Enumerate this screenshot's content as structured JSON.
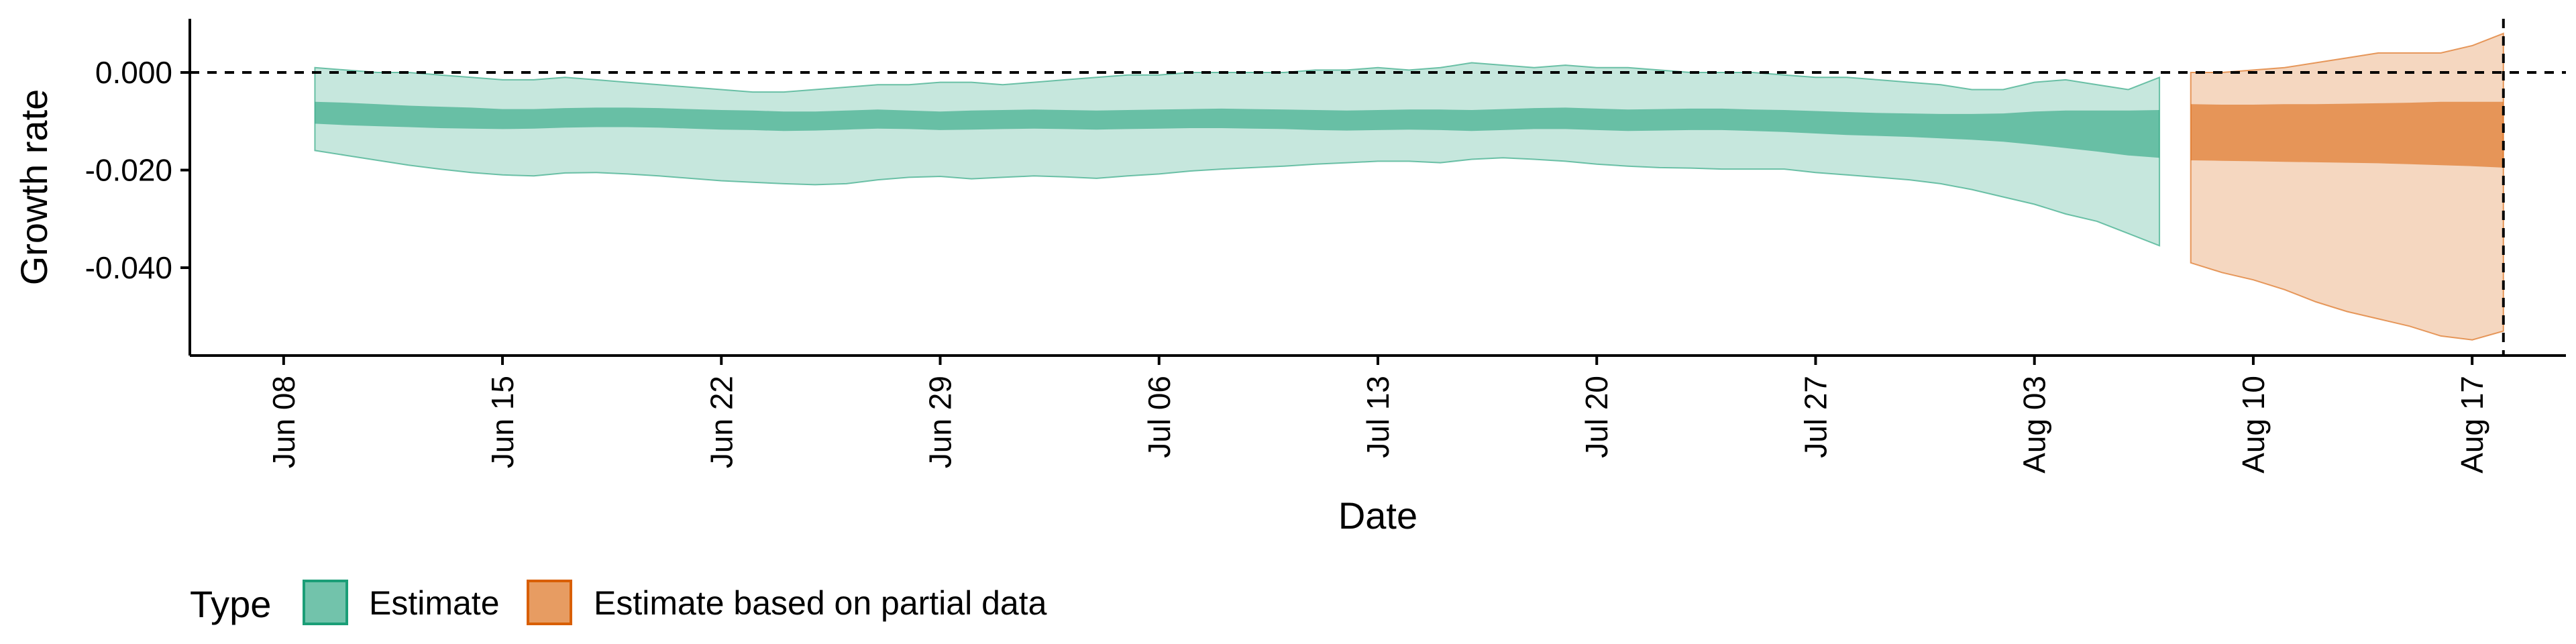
{
  "chart_data": {
    "type": "area",
    "xlabel": "Date",
    "ylabel": "Growth rate",
    "x_ticks": [
      "Jun 08",
      "Jun 15",
      "Jun 22",
      "Jun 29",
      "Jul 06",
      "Jul 13",
      "Jul 20",
      "Jul 27",
      "Aug 03",
      "Aug 10",
      "Aug 17"
    ],
    "y_ticks": [
      "0.000",
      "-0.020",
      "-0.040"
    ],
    "y_tick_values": [
      0.0,
      -0.02,
      -0.04
    ],
    "ylim": [
      -0.058,
      0.011
    ],
    "xlim": [
      "2020-06-05",
      "2020-08-20"
    ],
    "reference_lines": {
      "hline_y": 0.0,
      "vline_date": "2020-08-18"
    },
    "legend": {
      "title": "Type",
      "position": "bottom-left",
      "entries": [
        "Estimate",
        "Estimate based on partial data"
      ]
    },
    "series": [
      {
        "name": "Estimate",
        "fill_color": "#1b9e77",
        "x": [
          "2020-06-09",
          "2020-06-10",
          "2020-06-11",
          "2020-06-12",
          "2020-06-13",
          "2020-06-14",
          "2020-06-15",
          "2020-06-16",
          "2020-06-17",
          "2020-06-18",
          "2020-06-19",
          "2020-06-20",
          "2020-06-21",
          "2020-06-22",
          "2020-06-23",
          "2020-06-24",
          "2020-06-25",
          "2020-06-26",
          "2020-06-27",
          "2020-06-28",
          "2020-06-29",
          "2020-06-30",
          "2020-07-01",
          "2020-07-02",
          "2020-07-03",
          "2020-07-04",
          "2020-07-05",
          "2020-07-06",
          "2020-07-07",
          "2020-07-08",
          "2020-07-09",
          "2020-07-10",
          "2020-07-11",
          "2020-07-12",
          "2020-07-13",
          "2020-07-14",
          "2020-07-15",
          "2020-07-16",
          "2020-07-17",
          "2020-07-18",
          "2020-07-19",
          "2020-07-20",
          "2020-07-21",
          "2020-07-22",
          "2020-07-23",
          "2020-07-24",
          "2020-07-25",
          "2020-07-26",
          "2020-07-27",
          "2020-07-28",
          "2020-07-29",
          "2020-07-30",
          "2020-07-31",
          "2020-08-01",
          "2020-08-02",
          "2020-08-03",
          "2020-08-04",
          "2020-08-05",
          "2020-08-06",
          "2020-08-07"
        ],
        "outer_upper": [
          0.001,
          0.0005,
          0.0,
          0.0,
          -0.0005,
          -0.001,
          -0.0015,
          -0.0015,
          -0.001,
          -0.0015,
          -0.002,
          -0.0025,
          -0.003,
          -0.0035,
          -0.004,
          -0.004,
          -0.0035,
          -0.003,
          -0.0025,
          -0.0025,
          -0.002,
          -0.002,
          -0.0025,
          -0.002,
          -0.0015,
          -0.001,
          -0.0005,
          -0.0005,
          0.0,
          0.0,
          0.0,
          0.0,
          0.0005,
          0.0005,
          0.001,
          0.0005,
          0.001,
          0.002,
          0.0015,
          0.001,
          0.0015,
          0.001,
          0.001,
          0.0005,
          0.0,
          0.0,
          0.0,
          -0.0005,
          -0.001,
          -0.001,
          -0.0015,
          -0.002,
          -0.0025,
          -0.0035,
          -0.0035,
          -0.002,
          -0.0015,
          -0.0025,
          -0.0035,
          -0.001
        ],
        "inner_upper": [
          -0.006,
          -0.0062,
          -0.0065,
          -0.0068,
          -0.007,
          -0.0072,
          -0.0075,
          -0.0075,
          -0.0073,
          -0.0072,
          -0.0072,
          -0.0073,
          -0.0075,
          -0.0077,
          -0.0078,
          -0.008,
          -0.008,
          -0.0078,
          -0.0076,
          -0.0078,
          -0.008,
          -0.0078,
          -0.0077,
          -0.0076,
          -0.0077,
          -0.0078,
          -0.0077,
          -0.0076,
          -0.0075,
          -0.0074,
          -0.0075,
          -0.0076,
          -0.0077,
          -0.0078,
          -0.0077,
          -0.0076,
          -0.0076,
          -0.0077,
          -0.0075,
          -0.0073,
          -0.0072,
          -0.0074,
          -0.0076,
          -0.0075,
          -0.0074,
          -0.0074,
          -0.0076,
          -0.0077,
          -0.0079,
          -0.0081,
          -0.0083,
          -0.0084,
          -0.0085,
          -0.0085,
          -0.0084,
          -0.008,
          -0.0078,
          -0.0078,
          -0.0078,
          -0.0077
        ],
        "inner_lower": [
          -0.0105,
          -0.0108,
          -0.011,
          -0.0112,
          -0.0114,
          -0.0115,
          -0.0116,
          -0.0115,
          -0.0113,
          -0.0112,
          -0.0112,
          -0.0113,
          -0.0115,
          -0.0117,
          -0.0118,
          -0.012,
          -0.0119,
          -0.0117,
          -0.0115,
          -0.0116,
          -0.0118,
          -0.0117,
          -0.0116,
          -0.0115,
          -0.0116,
          -0.0117,
          -0.0116,
          -0.0115,
          -0.0114,
          -0.0114,
          -0.0115,
          -0.0116,
          -0.0118,
          -0.0119,
          -0.0118,
          -0.0117,
          -0.0118,
          -0.012,
          -0.0118,
          -0.0116,
          -0.0116,
          -0.0118,
          -0.012,
          -0.0119,
          -0.0118,
          -0.0118,
          -0.012,
          -0.0122,
          -0.0125,
          -0.0128,
          -0.013,
          -0.0132,
          -0.0135,
          -0.0138,
          -0.0142,
          -0.0148,
          -0.0155,
          -0.0162,
          -0.017,
          -0.0175
        ],
        "outer_lower": [
          -0.016,
          -0.017,
          -0.018,
          -0.019,
          -0.0198,
          -0.0205,
          -0.021,
          -0.0212,
          -0.0206,
          -0.0205,
          -0.0208,
          -0.0212,
          -0.0217,
          -0.0222,
          -0.0225,
          -0.0228,
          -0.023,
          -0.0228,
          -0.022,
          -0.0215,
          -0.0213,
          -0.0218,
          -0.0215,
          -0.0212,
          -0.0214,
          -0.0217,
          -0.0212,
          -0.0208,
          -0.0202,
          -0.0198,
          -0.0195,
          -0.0192,
          -0.0188,
          -0.0185,
          -0.0182,
          -0.0182,
          -0.0185,
          -0.0178,
          -0.0175,
          -0.0178,
          -0.0182,
          -0.0188,
          -0.0192,
          -0.0195,
          -0.0196,
          -0.0198,
          -0.0198,
          -0.0198,
          -0.0205,
          -0.021,
          -0.0215,
          -0.022,
          -0.0228,
          -0.024,
          -0.0255,
          -0.027,
          -0.029,
          -0.0305,
          -0.033,
          -0.0355
        ]
      },
      {
        "name": "Estimate based on partial data",
        "fill_color": "#d95f02",
        "x": [
          "2020-08-08",
          "2020-08-09",
          "2020-08-10",
          "2020-08-11",
          "2020-08-12",
          "2020-08-13",
          "2020-08-14",
          "2020-08-15",
          "2020-08-16",
          "2020-08-17",
          "2020-08-18"
        ],
        "outer_upper": [
          0.0,
          0.0,
          0.0005,
          0.001,
          0.002,
          0.003,
          0.004,
          0.004,
          0.004,
          0.0055,
          0.008
        ],
        "inner_upper": [
          -0.0065,
          -0.0066,
          -0.0066,
          -0.0065,
          -0.0065,
          -0.0064,
          -0.0063,
          -0.0062,
          -0.006,
          -0.006,
          -0.006
        ],
        "inner_lower": [
          -0.018,
          -0.0181,
          -0.0182,
          -0.0183,
          -0.0184,
          -0.0185,
          -0.0186,
          -0.0188,
          -0.019,
          -0.0192,
          -0.0195
        ],
        "outer_lower": [
          -0.039,
          -0.041,
          -0.0425,
          -0.0445,
          -0.047,
          -0.049,
          -0.0505,
          -0.052,
          -0.054,
          -0.0548,
          -0.053
        ]
      }
    ]
  }
}
